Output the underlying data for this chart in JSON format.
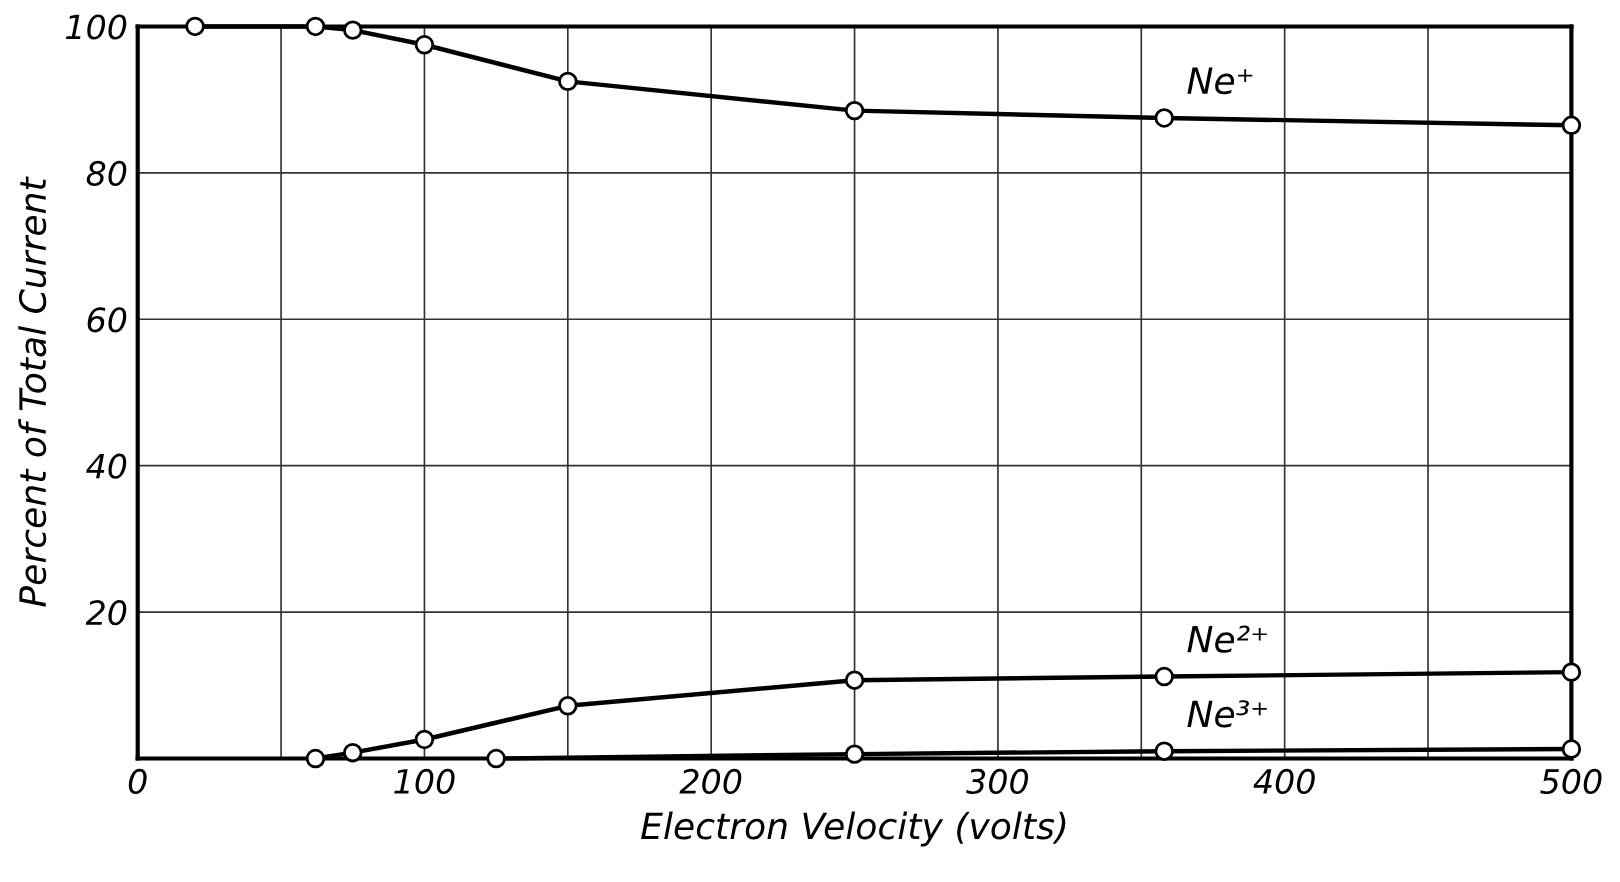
{
  "chart_data": {
    "type": "line",
    "xlabel": "Electron Velocity (volts)",
    "ylabel": "Percent of Total Current",
    "xlim": [
      0,
      500
    ],
    "ylim": [
      0,
      100
    ],
    "xticks": [
      0,
      {
        "value": 50,
        "label": null
      },
      100,
      {
        "value": 150,
        "label": null
      },
      200,
      {
        "value": 250,
        "label": null
      },
      300,
      {
        "value": 350,
        "label": null
      },
      400,
      {
        "value": 450,
        "label": null
      },
      500
    ],
    "yticks": [
      {
        "value": 0,
        "label": null
      },
      20,
      40,
      60,
      80,
      100
    ],
    "grid": true,
    "marker": "circle",
    "line_style": "solid",
    "legend": false,
    "series": [
      {
        "name": "Ne⁺",
        "color": "#000000",
        "x": [
          20,
          62,
          75,
          100,
          150,
          250,
          358,
          500
        ],
        "values": [
          100,
          100,
          99.5,
          97.5,
          92.5,
          88.5,
          87.5,
          86.5
        ]
      },
      {
        "name": "Ne²⁺",
        "color": "#000000",
        "x": [
          62,
          75,
          100,
          150,
          250,
          358,
          500
        ],
        "values": [
          0,
          0.8,
          2.6,
          7.2,
          10.7,
          11.2,
          11.8
        ]
      },
      {
        "name": "Ne³⁺",
        "color": "#000000",
        "x": [
          125,
          250,
          358,
          500
        ],
        "values": [
          0,
          0.6,
          1,
          1.3
        ]
      }
    ]
  }
}
